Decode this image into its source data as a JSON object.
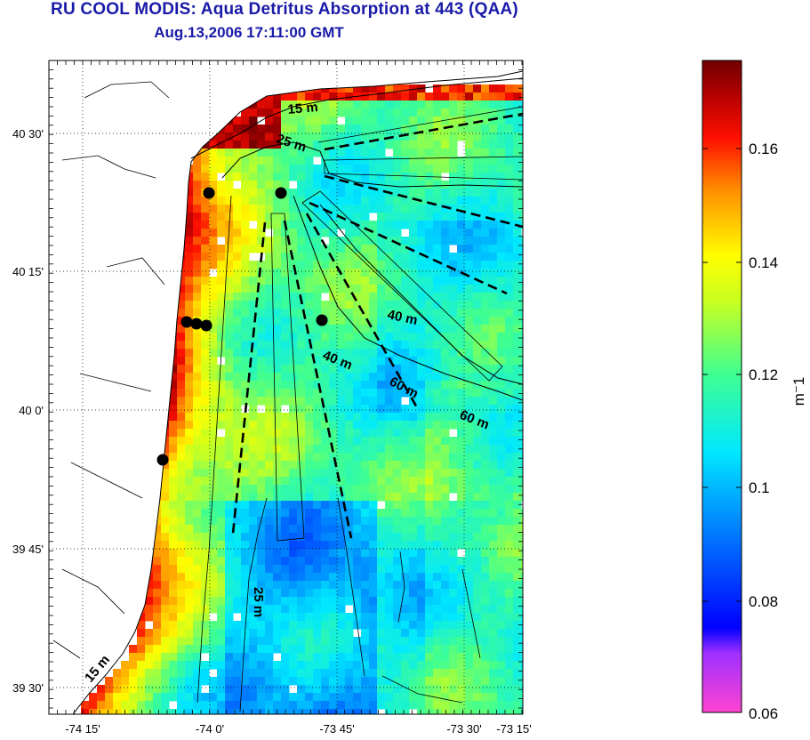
{
  "title": "RU COOL MODIS: Aqua Detritus Absorption at 443 (QAA)",
  "subtitle": "Aug.13,2006 17:11:00 GMT",
  "map": {
    "lon_ticks": [
      "-74 15'",
      "-74 0'",
      "-73 45'",
      "-73 30'",
      "-73 15'"
    ],
    "lat_ticks": [
      "40 30'",
      "40 15'",
      "40 0'",
      "39 45'",
      "39 30'"
    ],
    "depth_labels": [
      "15 m",
      "25 m",
      "40 m",
      "40 m",
      "60 m",
      "60 m",
      "25 m",
      "15 m"
    ],
    "grid": true,
    "land_color": "#ffffff"
  },
  "colorbar": {
    "unit": "m⁻1",
    "min": 0.06,
    "max": 0.175,
    "ticks": [
      "0.16",
      "0.14",
      "0.12",
      "0.1",
      "0.08",
      "0.06"
    ],
    "colormap": [
      "#ff44d0",
      "#a030ff",
      "#0000ff",
      "#0090ff",
      "#00e8ff",
      "#40ff90",
      "#c8ff20",
      "#ffff00",
      "#ff9000",
      "#ff1000",
      "#b00000",
      "#700000"
    ]
  }
}
